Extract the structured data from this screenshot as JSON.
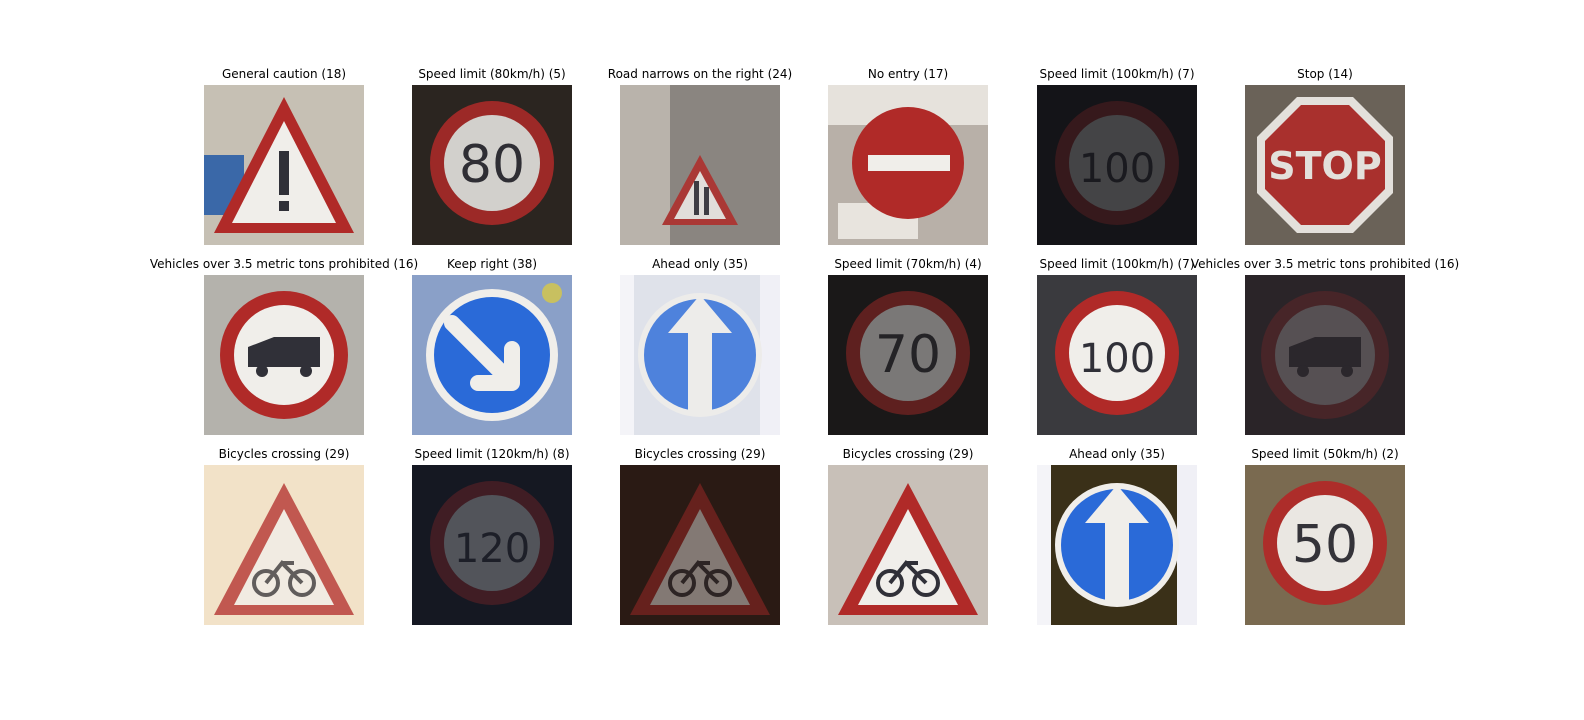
{
  "figure": {
    "cells": [
      {
        "title": "General caution (18)",
        "icon": "general-caution-sign-icon",
        "kind": "caution",
        "bg": "#c6c0b4",
        "tone": 1.0
      },
      {
        "title": "Speed limit (80km/h) (5)",
        "icon": "speed-limit-80-sign-icon",
        "kind": "speed",
        "text": "80",
        "bg": "#2b2520",
        "tone": 0.85
      },
      {
        "title": "Road narrows on the right (24)",
        "icon": "road-narrows-right-sign-icon",
        "kind": "narrows",
        "bg": "#8a8580",
        "tone": 0.85
      },
      {
        "title": "No entry (17)",
        "icon": "no-entry-sign-icon",
        "kind": "noentry",
        "bg": "#b8b0a8",
        "tone": 1.0
      },
      {
        "title": "Speed limit (100km/h) (7)",
        "icon": "speed-limit-100-sign-icon",
        "kind": "speed",
        "text": "100",
        "bg": "#141418",
        "tone": 0.22
      },
      {
        "title": "Stop (14)",
        "icon": "stop-sign-icon",
        "kind": "stop",
        "text": "STOP",
        "bg": "#6a6258",
        "tone": 0.9
      },
      {
        "title": "Vehicles over 3.5 metric tons prohibited (16)",
        "icon": "truck-prohibited-sign-icon",
        "kind": "truck",
        "bg": "#b4b2ac",
        "tone": 1.0
      },
      {
        "title": "Keep right (38)",
        "icon": "keep-right-sign-icon",
        "kind": "keepright",
        "bg": "#8aa0c8",
        "tone": 1.0
      },
      {
        "title": "Ahead only (35)",
        "icon": "ahead-only-sign-icon",
        "kind": "ahead",
        "bg": "#dfe2ea",
        "tone": 0.8
      },
      {
        "title": "Speed limit (70km/h) (4)",
        "icon": "speed-limit-70-sign-icon",
        "kind": "speed",
        "text": "70",
        "bg": "#1a1818",
        "tone": 0.45
      },
      {
        "title": "Speed limit (100km/h) (7)",
        "icon": "speed-limit-100-sign-icon",
        "kind": "speed",
        "text": "100",
        "bg": "#3a3a3e",
        "tone": 1.0
      },
      {
        "title": "Vehicles over 3.5 metric tons prohibited (16)",
        "icon": "truck-prohibited-sign-icon",
        "kind": "truck",
        "bg": "#2a2428",
        "tone": 0.22
      },
      {
        "title": "Bicycles crossing (29)",
        "icon": "bicycles-crossing-sign-icon",
        "kind": "bicycle",
        "bg": "#f2e2c8",
        "tone": 0.75
      },
      {
        "title": "Speed limit (120km/h) (8)",
        "icon": "speed-limit-120-sign-icon",
        "kind": "speed",
        "text": "120",
        "bg": "#151822",
        "tone": 0.28
      },
      {
        "title": "Bicycles crossing (29)",
        "icon": "bicycles-crossing-sign-icon",
        "kind": "bicycle",
        "bg": "#2a1a14",
        "tone": 0.45
      },
      {
        "title": "Bicycles crossing (29)",
        "icon": "bicycles-crossing-sign-icon",
        "kind": "bicycle",
        "bg": "#c8c0b8",
        "tone": 1.0
      },
      {
        "title": "Ahead only (35)",
        "icon": "ahead-only-sign-icon",
        "kind": "ahead",
        "bg": "#3a3018",
        "tone": 1.0
      },
      {
        "title": "Speed limit (50km/h) (2)",
        "icon": "speed-limit-50-sign-icon",
        "kind": "speed",
        "text": "50",
        "bg": "#7a6a50",
        "tone": 0.95
      }
    ]
  }
}
